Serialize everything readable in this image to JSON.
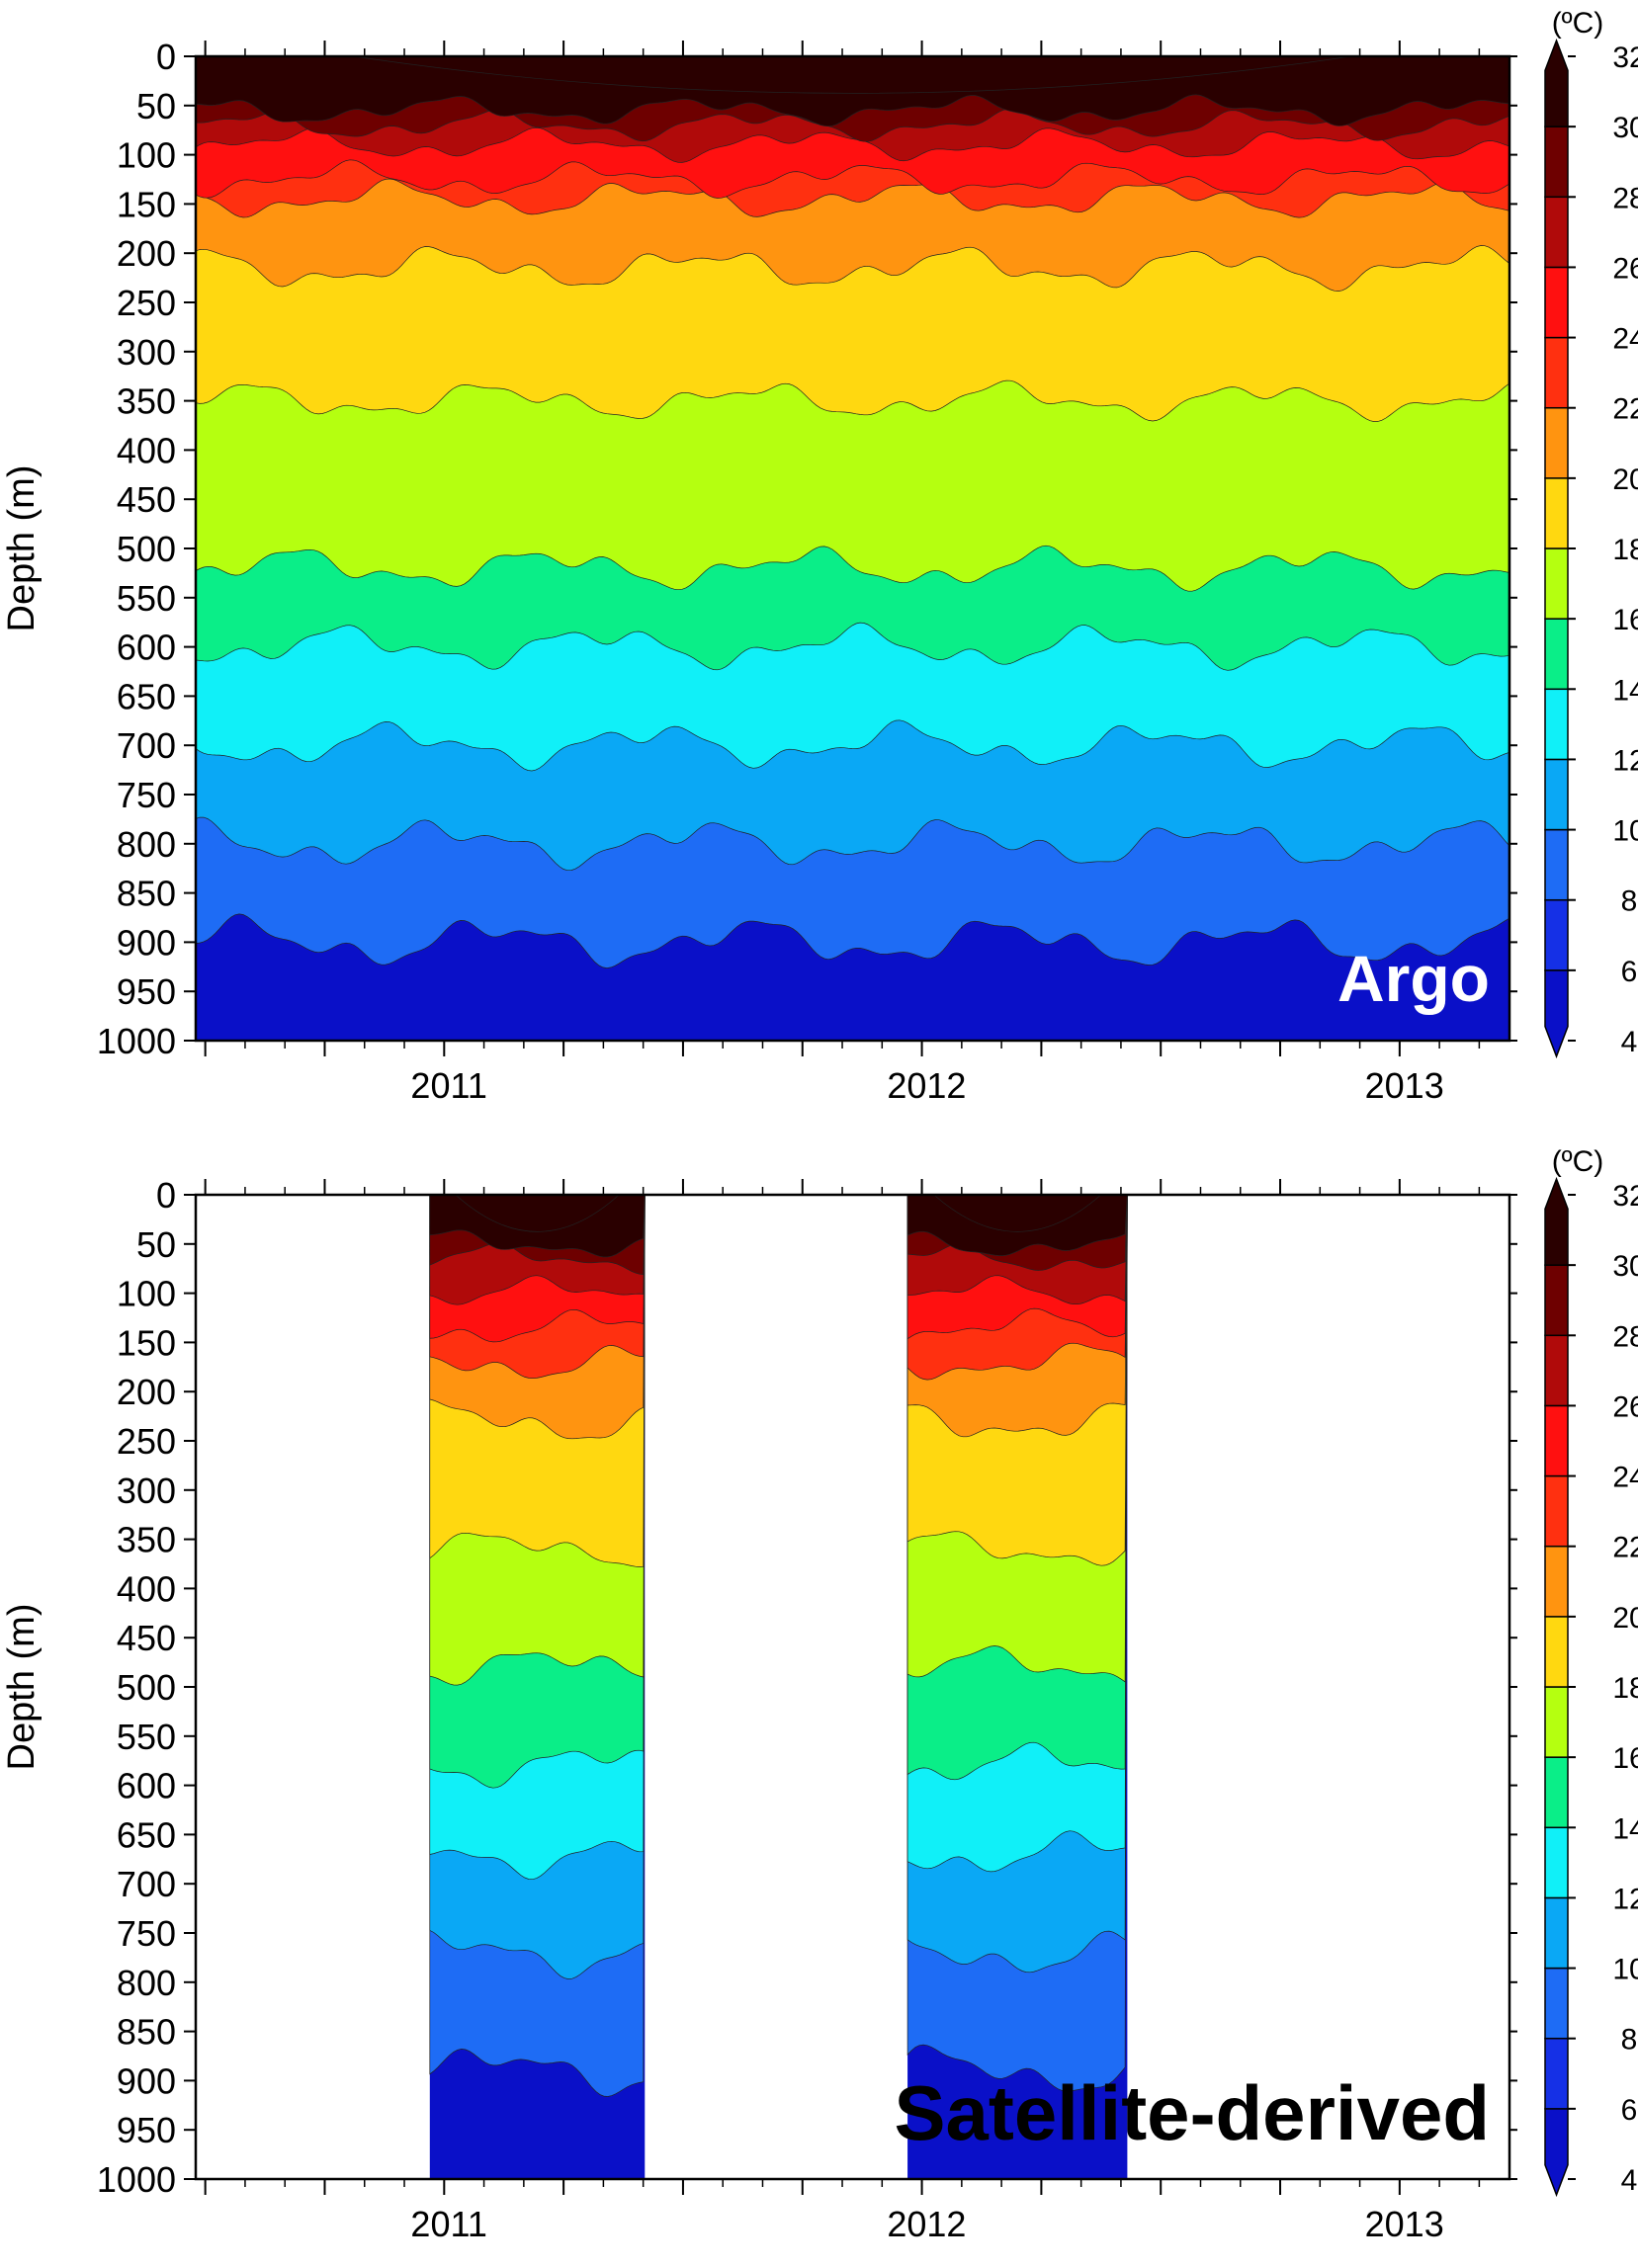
{
  "colors": {
    "levels": [
      4,
      6,
      8,
      10,
      12,
      14,
      16,
      18,
      20,
      22,
      24,
      26,
      28,
      30,
      32
    ],
    "fills": [
      "#0a10c8",
      "#1530e6",
      "#1e6cf5",
      "#0aa8f5",
      "#10f0f8",
      "#0aee88",
      "#b5ff10",
      "#ffd810",
      "#ff9410",
      "#ff3010",
      "#ff1010",
      "#b00a0a",
      "#6e0000",
      "#2a0000"
    ]
  },
  "chart_data": [
    {
      "type": "contour",
      "label": "Argo",
      "ylabel": "Depth (m)",
      "ylim": [
        0,
        1000
      ],
      "yticks": [
        0,
        50,
        100,
        150,
        200,
        250,
        300,
        350,
        400,
        450,
        500,
        550,
        600,
        650,
        700,
        750,
        800,
        850,
        900,
        950,
        1000
      ],
      "xticks": [
        {
          "label": "2011",
          "t": 2011.0
        },
        {
          "label": "2012",
          "t": 2012.0
        },
        {
          "label": "2013",
          "t": 2013.0
        }
      ],
      "xlim": [
        2010.48,
        2013.23
      ],
      "coverage": [
        [
          2010.48,
          2013.23
        ]
      ],
      "colorbar": {
        "unit": "(ºC)",
        "ticks": [
          4,
          6,
          8,
          10,
          12,
          14,
          16,
          18,
          20,
          22,
          24,
          26,
          28,
          30,
          32
        ]
      },
      "isotherm_depths_m": [
        {
          "temp": 30,
          "depth": 55
        },
        {
          "temp": 28,
          "depth": 70
        },
        {
          "temp": 26,
          "depth": 90
        },
        {
          "temp": 24,
          "depth": 125
        },
        {
          "temp": 22,
          "depth": 145
        },
        {
          "temp": 20,
          "depth": 215
        },
        {
          "temp": 18,
          "depth": 350
        },
        {
          "temp": 16,
          "depth": 520
        },
        {
          "temp": 14,
          "depth": 600
        },
        {
          "temp": 12,
          "depth": 700
        },
        {
          "temp": 10,
          "depth": 800
        },
        {
          "temp": 8,
          "depth": 900
        }
      ]
    },
    {
      "type": "contour",
      "label": "Satellite-derived",
      "ylabel": "Depth (m)",
      "ylim": [
        0,
        1000
      ],
      "yticks": [
        0,
        50,
        100,
        150,
        200,
        250,
        300,
        350,
        400,
        450,
        500,
        550,
        600,
        650,
        700,
        750,
        800,
        850,
        900,
        950,
        1000
      ],
      "xticks": [
        {
          "label": "2011",
          "t": 2011.0
        },
        {
          "label": "2012",
          "t": 2012.0
        },
        {
          "label": "2013",
          "t": 2013.0
        }
      ],
      "xlim": [
        2010.48,
        2013.23
      ],
      "coverage": [
        [
          2010.97,
          2011.42
        ],
        [
          2011.97,
          2012.43
        ]
      ],
      "colorbar": {
        "unit": "(ºC)",
        "ticks": [
          4,
          6,
          8,
          10,
          12,
          14,
          16,
          18,
          20,
          22,
          24,
          26,
          28,
          30,
          32
        ]
      },
      "isotherm_depths_m": [
        {
          "temp": 30,
          "depth": 50
        },
        {
          "temp": 28,
          "depth": 65
        },
        {
          "temp": 26,
          "depth": 100
        },
        {
          "temp": 24,
          "depth": 135
        },
        {
          "temp": 22,
          "depth": 170
        },
        {
          "temp": 20,
          "depth": 230
        },
        {
          "temp": 18,
          "depth": 360
        },
        {
          "temp": 16,
          "depth": 480
        },
        {
          "temp": 14,
          "depth": 580
        },
        {
          "temp": 12,
          "depth": 670
        },
        {
          "temp": 10,
          "depth": 770
        },
        {
          "temp": 8,
          "depth": 890
        }
      ]
    }
  ]
}
